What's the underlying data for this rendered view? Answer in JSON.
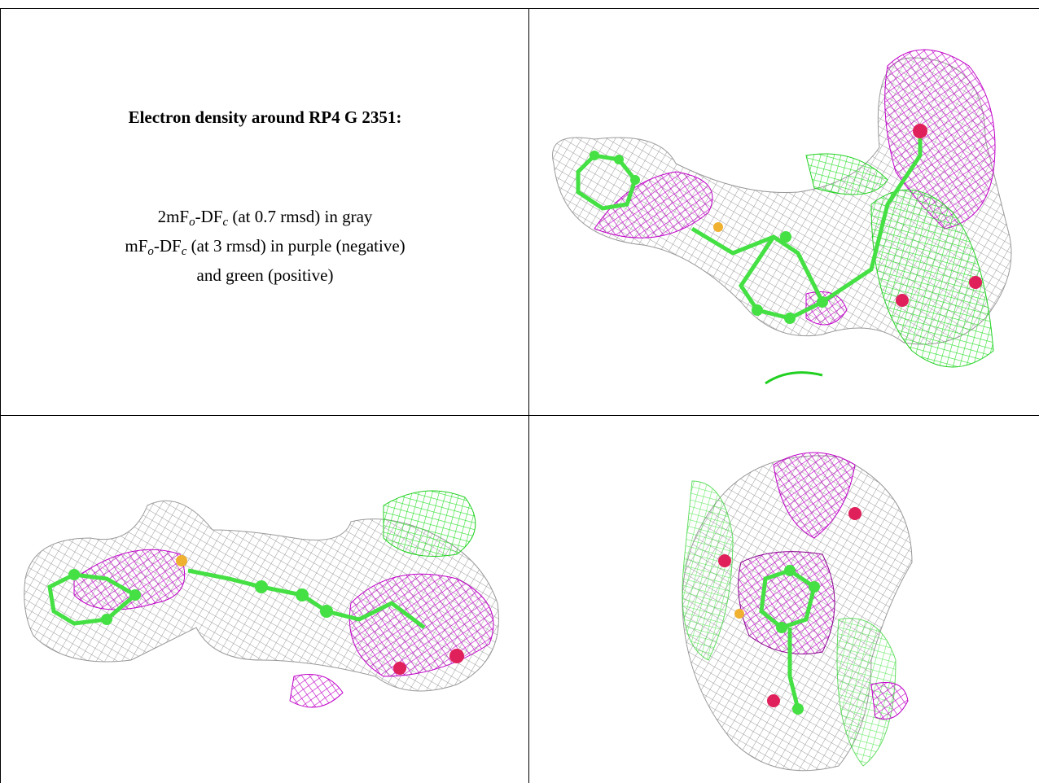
{
  "caption": {
    "title": "Electron density around RP4 G 2351:",
    "lines": [
      [
        {
          "text": "2mF"
        },
        {
          "text": "o",
          "sub": true
        },
        {
          "text": "-DF"
        },
        {
          "text": "c",
          "sub": true
        },
        {
          "text": " (at 0.7 rmsd) in gray"
        }
      ],
      [
        {
          "text": "mF"
        },
        {
          "text": "o",
          "sub": true
        },
        {
          "text": "-DF"
        },
        {
          "text": "c",
          "sub": true
        },
        {
          "text": " (at 3 rmsd) in purple (negative)"
        }
      ],
      [
        {
          "text": "and green (positive)"
        }
      ]
    ]
  }
}
